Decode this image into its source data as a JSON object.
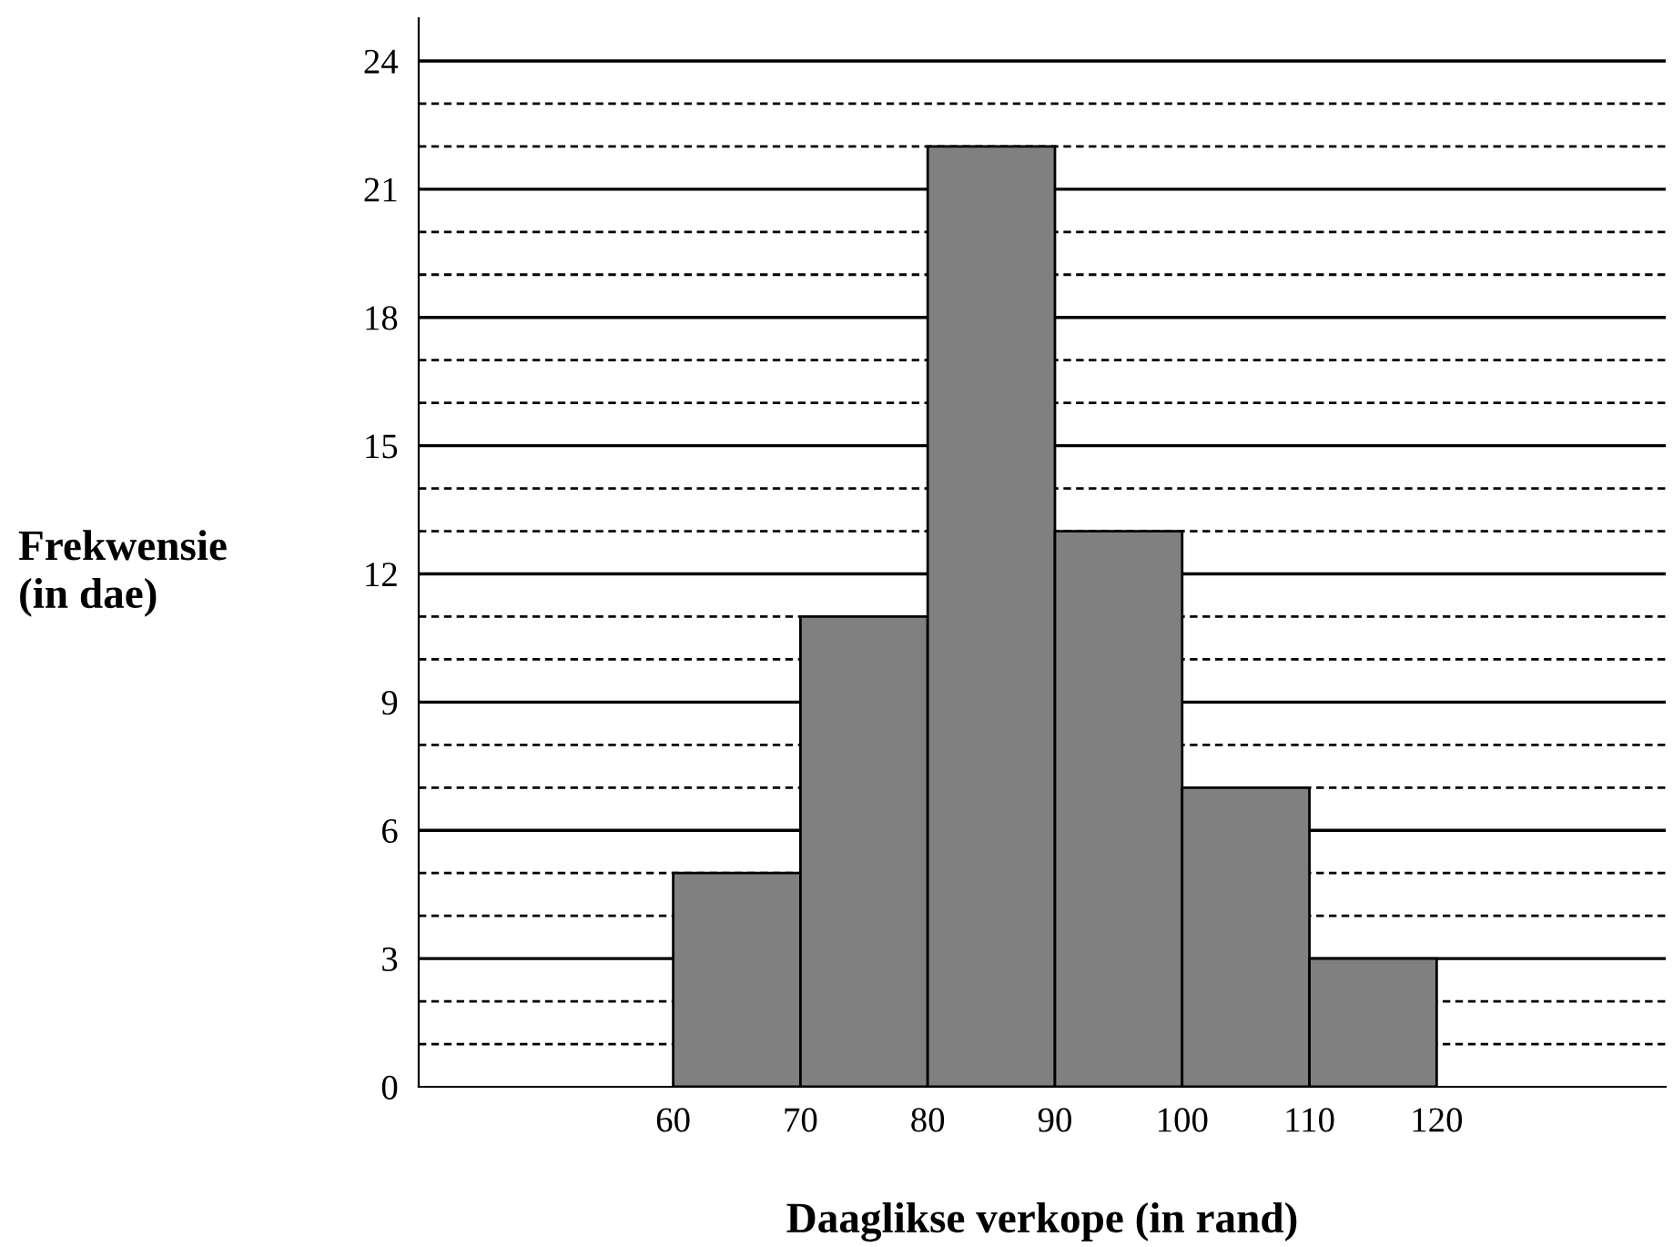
{
  "chart_data": {
    "type": "histogram",
    "xlabel": "Daaglikse verkope (in rand)",
    "ylabel": "Frekwensie\n(in dae)",
    "bins": [
      60,
      70,
      80,
      90,
      100,
      110,
      120
    ],
    "values": [
      5,
      11,
      22,
      13,
      7,
      3
    ],
    "color": "#808080",
    "xlim": [
      40,
      138
    ],
    "ylim": [
      0,
      25
    ],
    "xticks": [
      60,
      70,
      80,
      90,
      100,
      110,
      120
    ],
    "yticks": [
      0,
      3,
      6,
      9,
      12,
      15,
      18,
      21,
      24
    ],
    "grid": "y"
  }
}
